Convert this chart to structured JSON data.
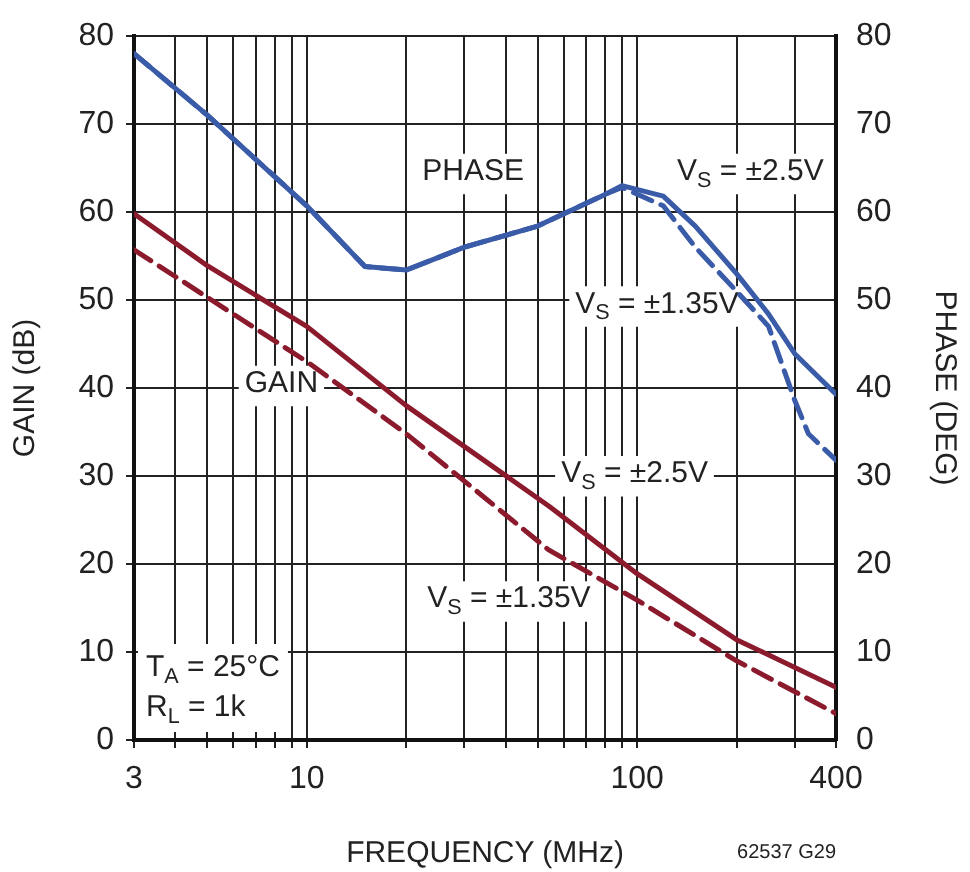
{
  "chart_data": {
    "type": "line",
    "xlabel": "FREQUENCY (MHz)",
    "ylabel": "GAIN (dB)",
    "y2label": "PHASE (DEG)",
    "log": "x",
    "grid": true,
    "legend": false,
    "marker": "none",
    "xlim": [
      3,
      400
    ],
    "xticks": [
      3,
      {
        "value": 4,
        "label": null
      },
      {
        "value": 5,
        "label": null
      },
      {
        "value": 6,
        "label": null
      },
      {
        "value": 7,
        "label": null
      },
      {
        "value": 8,
        "label": null
      },
      {
        "value": 9,
        "label": null
      },
      10,
      {
        "value": 20,
        "label": null
      },
      {
        "value": 30,
        "label": null
      },
      {
        "value": 40,
        "label": null
      },
      {
        "value": 50,
        "label": null
      },
      {
        "value": 60,
        "label": null
      },
      {
        "value": 70,
        "label": null
      },
      {
        "value": 80,
        "label": null
      },
      {
        "value": 90,
        "label": null
      },
      100,
      {
        "value": 200,
        "label": null
      },
      {
        "value": 300,
        "label": null
      },
      400
    ],
    "ylim": [
      0,
      80
    ],
    "yticks": [
      0,
      10,
      20,
      30,
      40,
      50,
      60,
      70,
      80
    ],
    "y2lim": [
      0,
      80
    ],
    "y2ticks": [
      0,
      10,
      20,
      30,
      40,
      50,
      60,
      70,
      80
    ],
    "series": [
      {
        "color": "#8b1a2c",
        "line_style": "solid",
        "x": [
          3,
          5,
          10,
          20,
          54,
          100,
          200,
          400
        ],
        "values": [
          59.8,
          53.9,
          47,
          38,
          26.6,
          18.9,
          11.4,
          6
        ]
      },
      {
        "color": "#8b1a2c",
        "line_style": "dashed",
        "x": [
          3,
          10,
          20,
          54,
          100,
          200,
          400
        ],
        "values": [
          55.7,
          43,
          34.8,
          21.6,
          15.9,
          9,
          3
        ]
      },
      {
        "color": "#3a5ba8",
        "line_style": "solid",
        "axis": "y2",
        "x": [
          3,
          5,
          10,
          15,
          20,
          30,
          50,
          80,
          90,
          120,
          150,
          200,
          250,
          300,
          400
        ],
        "values": [
          78,
          71,
          60.7,
          53.8,
          53.4,
          56,
          58.4,
          62,
          63,
          61.8,
          58.4,
          53,
          48.4,
          43.9,
          39.3
        ]
      },
      {
        "color": "#3a5ba8",
        "line_style": "dashed",
        "axis": "y2",
        "x": [
          3,
          5,
          10,
          15,
          20,
          30,
          50,
          80,
          90,
          120,
          150,
          200,
          250,
          300,
          330,
          400
        ],
        "values": [
          78,
          71,
          60.7,
          53.8,
          53.4,
          56,
          58.4,
          62,
          62.8,
          60.7,
          56,
          51,
          47,
          38.6,
          34.8,
          31.8
        ]
      }
    ],
    "annotations": [
      "PHASE",
      "V$_{S}$ = ±2.5V",
      "V$_{S}$ = ±1.35V",
      "GAIN",
      "V$_{S}$ = ±2.5V",
      "V$_{S}$ = ±1.35V",
      "T$_{A}$ = 25°C",
      "R$_{L}$ = 1k",
      "62537 G29"
    ]
  }
}
